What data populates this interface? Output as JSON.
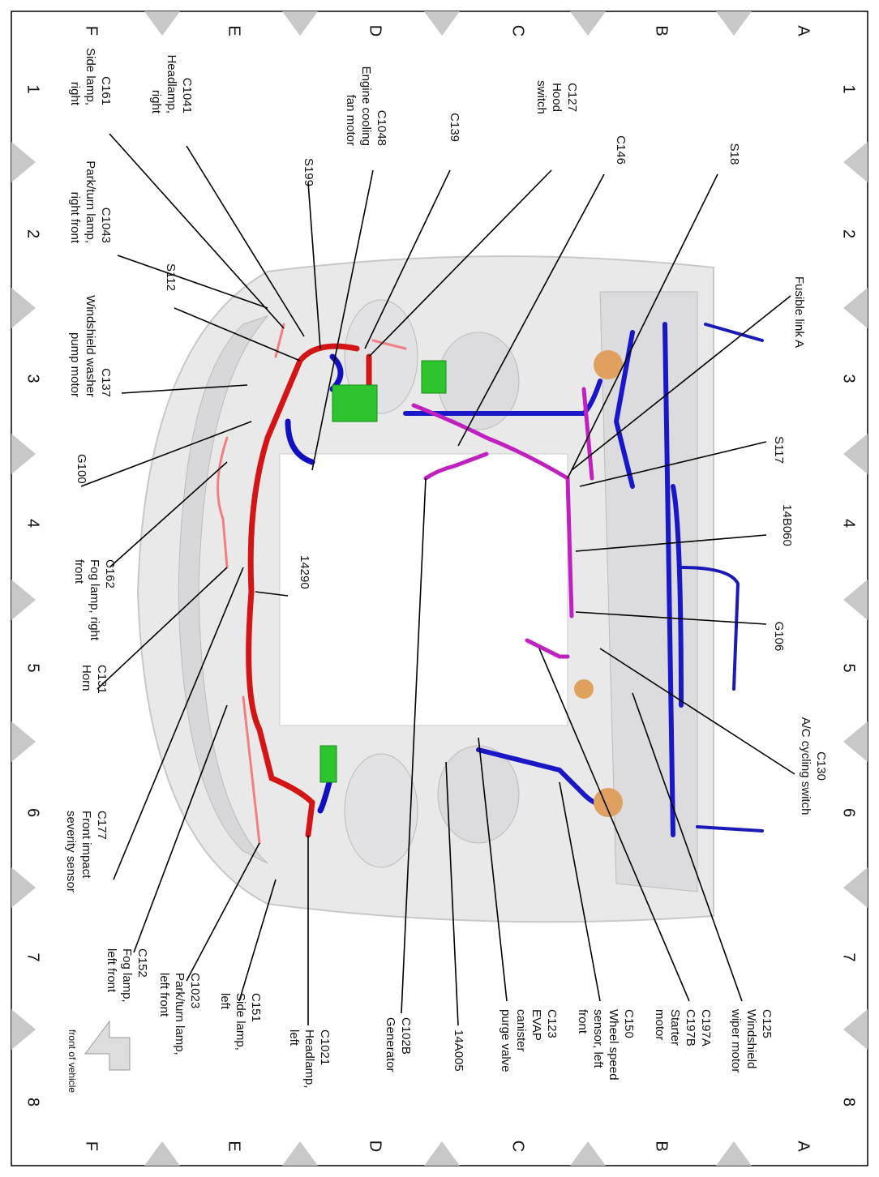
{
  "grid": {
    "columns": [
      "A",
      "B",
      "C",
      "D",
      "E",
      "F"
    ],
    "rows": [
      "1",
      "2",
      "3",
      "4",
      "5",
      "6",
      "7",
      "8"
    ]
  },
  "labels": [
    {
      "lines": [
        "C127",
        "Hood",
        "switch"
      ]
    },
    {
      "lines": [
        "C146"
      ]
    },
    {
      "lines": [
        "S18"
      ]
    },
    {
      "lines": [
        "Fusible link A"
      ]
    },
    {
      "lines": [
        "S117"
      ]
    },
    {
      "lines": [
        "14B060"
      ]
    },
    {
      "lines": [
        "G106"
      ]
    },
    {
      "lines": [
        "C130",
        "A/C cycling switch"
      ]
    },
    {
      "lines": [
        "C125",
        "Windshield",
        "wiper motor"
      ]
    },
    {
      "lines": [
        "C197A",
        "C197B",
        "Starter",
        "motor"
      ]
    },
    {
      "lines": [
        "C150",
        "Wheel speed",
        "sensor, left",
        "front"
      ]
    },
    {
      "lines": [
        "C123",
        "EVAP",
        "canister",
        "purge valve"
      ]
    },
    {
      "lines": [
        "14A005"
      ]
    },
    {
      "lines": [
        "C102B",
        "Generator"
      ]
    },
    {
      "lines": [
        "C1021",
        "Headlamp,",
        "left"
      ]
    },
    {
      "lines": [
        "C151",
        "Side lamp,",
        "left"
      ]
    },
    {
      "lines": [
        "C1023",
        "Park/turn lamp,",
        "left front"
      ]
    },
    {
      "lines": [
        "C152",
        "Fog lamp,",
        "left front"
      ]
    },
    {
      "lines": [
        "C177",
        "Front impact",
        "severity sensor"
      ]
    },
    {
      "lines": [
        "C131",
        "Horn"
      ]
    },
    {
      "lines": [
        "C162",
        "Fog lamp, right",
        "front"
      ]
    },
    {
      "lines": [
        "14290"
      ]
    },
    {
      "lines": [
        "G100"
      ]
    },
    {
      "lines": [
        "C137",
        "Windshield washer",
        "pump motor"
      ]
    },
    {
      "lines": [
        "C1043",
        "Park/turn lamp,",
        "right front"
      ]
    },
    {
      "lines": [
        "S112"
      ]
    },
    {
      "lines": [
        "C161",
        "Side lamp,",
        "right"
      ]
    },
    {
      "lines": [
        "C1041",
        "Headlamp,",
        "right"
      ]
    },
    {
      "lines": [
        "C1048",
        "Engine cooling",
        "fan motor"
      ]
    },
    {
      "lines": [
        "C139"
      ]
    },
    {
      "lines": [
        "S199"
      ]
    },
    {
      "lines": [
        "front of vehicle"
      ]
    }
  ]
}
